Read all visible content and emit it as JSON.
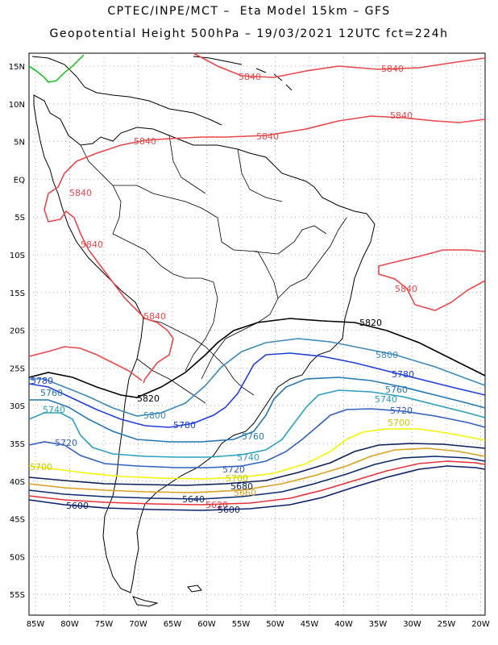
{
  "title": {
    "line1": "CPTEC/INPE/MCT –  Eta Model 15km – GFS",
    "line2": "Geopotential Height 500hPa – 19/03/2021 12UTC fct=224h"
  },
  "axes": {
    "lat_labels": [
      "15N",
      "10N",
      "5N",
      "EQ",
      "5S",
      "10S",
      "15S",
      "20S",
      "25S",
      "30S",
      "35S",
      "40S",
      "45S",
      "50S",
      "55S"
    ],
    "lon_labels": [
      "85W",
      "80W",
      "75W",
      "70W",
      "65W",
      "60W",
      "55W",
      "50W",
      "45W",
      "40W",
      "35W",
      "30W",
      "25W",
      "20W"
    ]
  },
  "colors": {
    "c5600": "#0b1f6b",
    "c5620": "#e8323a",
    "c5640": "#0b2a6e",
    "c5660": "#d9a020",
    "c5680": "#0d1e5a",
    "c5700": "#f5f500",
    "c5720": "#2f5fbf",
    "c5740": "#2b9fbf",
    "c5760": "#2477b3",
    "c5780": "#1f3fd6",
    "c5800": "#3c8ab8",
    "c5820": "#000000",
    "c5840": "#e8474a",
    "land": "#000000",
    "green": "#00c000"
  },
  "contour_labels": [
    {
      "text": "5840"
    },
    {
      "text": "5840"
    },
    {
      "text": "5840"
    },
    {
      "text": "5840"
    },
    {
      "text": "5840"
    },
    {
      "text": "5840"
    },
    {
      "text": "5840"
    },
    {
      "text": "5840"
    },
    {
      "text": "5840"
    },
    {
      "text": "5820"
    },
    {
      "text": "5820"
    },
    {
      "text": "5800"
    },
    {
      "text": "5800"
    },
    {
      "text": "5780"
    },
    {
      "text": "5780"
    },
    {
      "text": "5780"
    },
    {
      "text": "5760"
    },
    {
      "text": "5760"
    },
    {
      "text": "5760"
    },
    {
      "text": "5740"
    },
    {
      "text": "5740"
    },
    {
      "text": "5740"
    },
    {
      "text": "5720"
    },
    {
      "text": "5720"
    },
    {
      "text": "5720"
    },
    {
      "text": "5700"
    },
    {
      "text": "5700"
    },
    {
      "text": "5700"
    },
    {
      "text": "5680"
    },
    {
      "text": "5660"
    },
    {
      "text": "5640"
    },
    {
      "text": "5620"
    },
    {
      "text": "5600"
    },
    {
      "text": "5600"
    }
  ]
}
